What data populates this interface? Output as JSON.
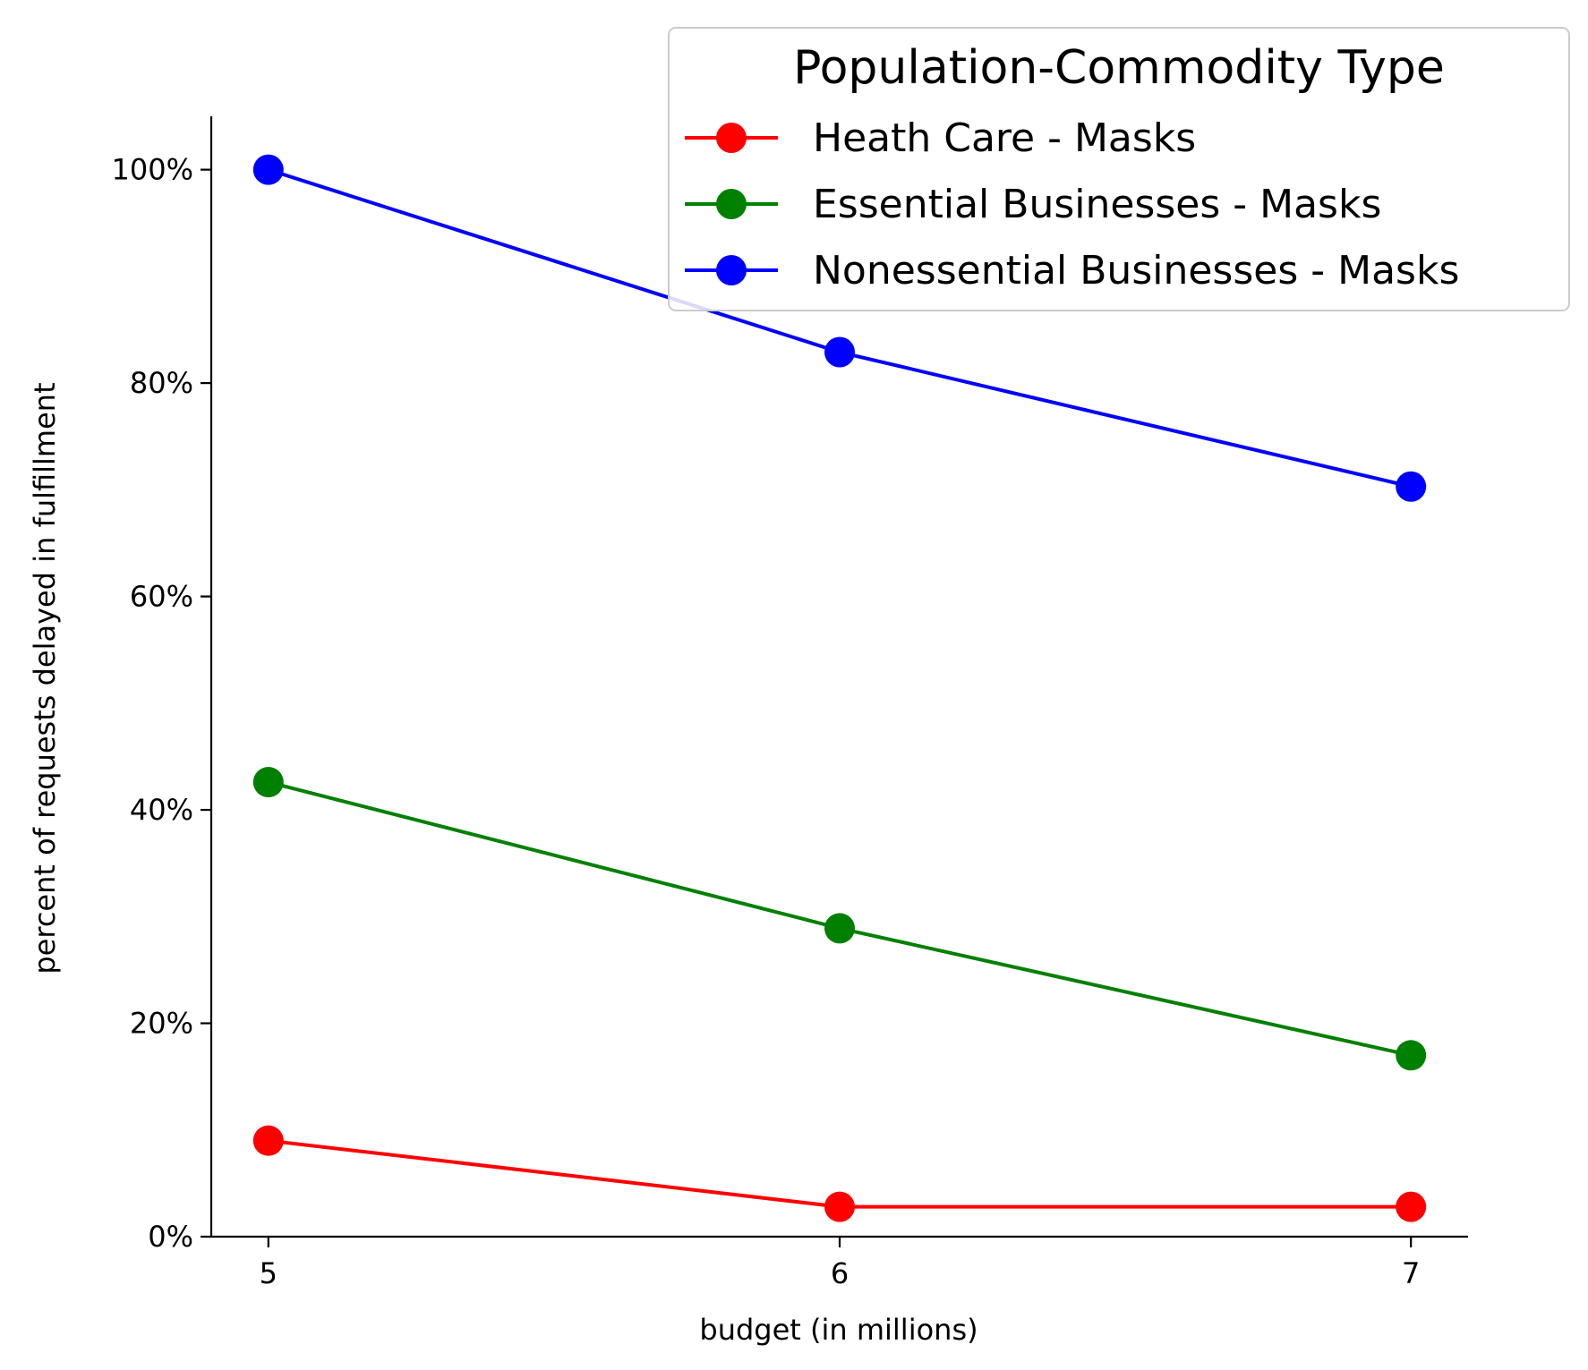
{
  "chart_data": {
    "type": "line",
    "x": [
      5,
      6,
      7
    ],
    "xticks": [
      "5",
      "6",
      "7"
    ],
    "xlim": [
      4.9,
      7.1
    ],
    "ylim": [
      0,
      1.05
    ],
    "yticks": [
      "0%",
      "20%",
      "40%",
      "60%",
      "80%",
      "100%"
    ],
    "ytick_values": [
      0,
      0.2,
      0.4,
      0.6,
      0.8,
      1.0
    ],
    "xlabel": "budget (in millions)",
    "ylabel": "percent of requests delayed in fulfillment",
    "legend_title": "Population-Commodity Type",
    "legend_position": "top-right",
    "grid": false,
    "series": [
      {
        "name": "Heath Care - Masks",
        "color": "#ff0000",
        "values": [
          0.09,
          0.028,
          0.028
        ]
      },
      {
        "name": "Essential Businesses - Masks",
        "color": "#008000",
        "values": [
          0.426,
          0.289,
          0.17
        ]
      },
      {
        "name": "Nonessential Businesses - Masks",
        "color": "#0000ff",
        "values": [
          1.0,
          0.829,
          0.703
        ]
      }
    ]
  }
}
